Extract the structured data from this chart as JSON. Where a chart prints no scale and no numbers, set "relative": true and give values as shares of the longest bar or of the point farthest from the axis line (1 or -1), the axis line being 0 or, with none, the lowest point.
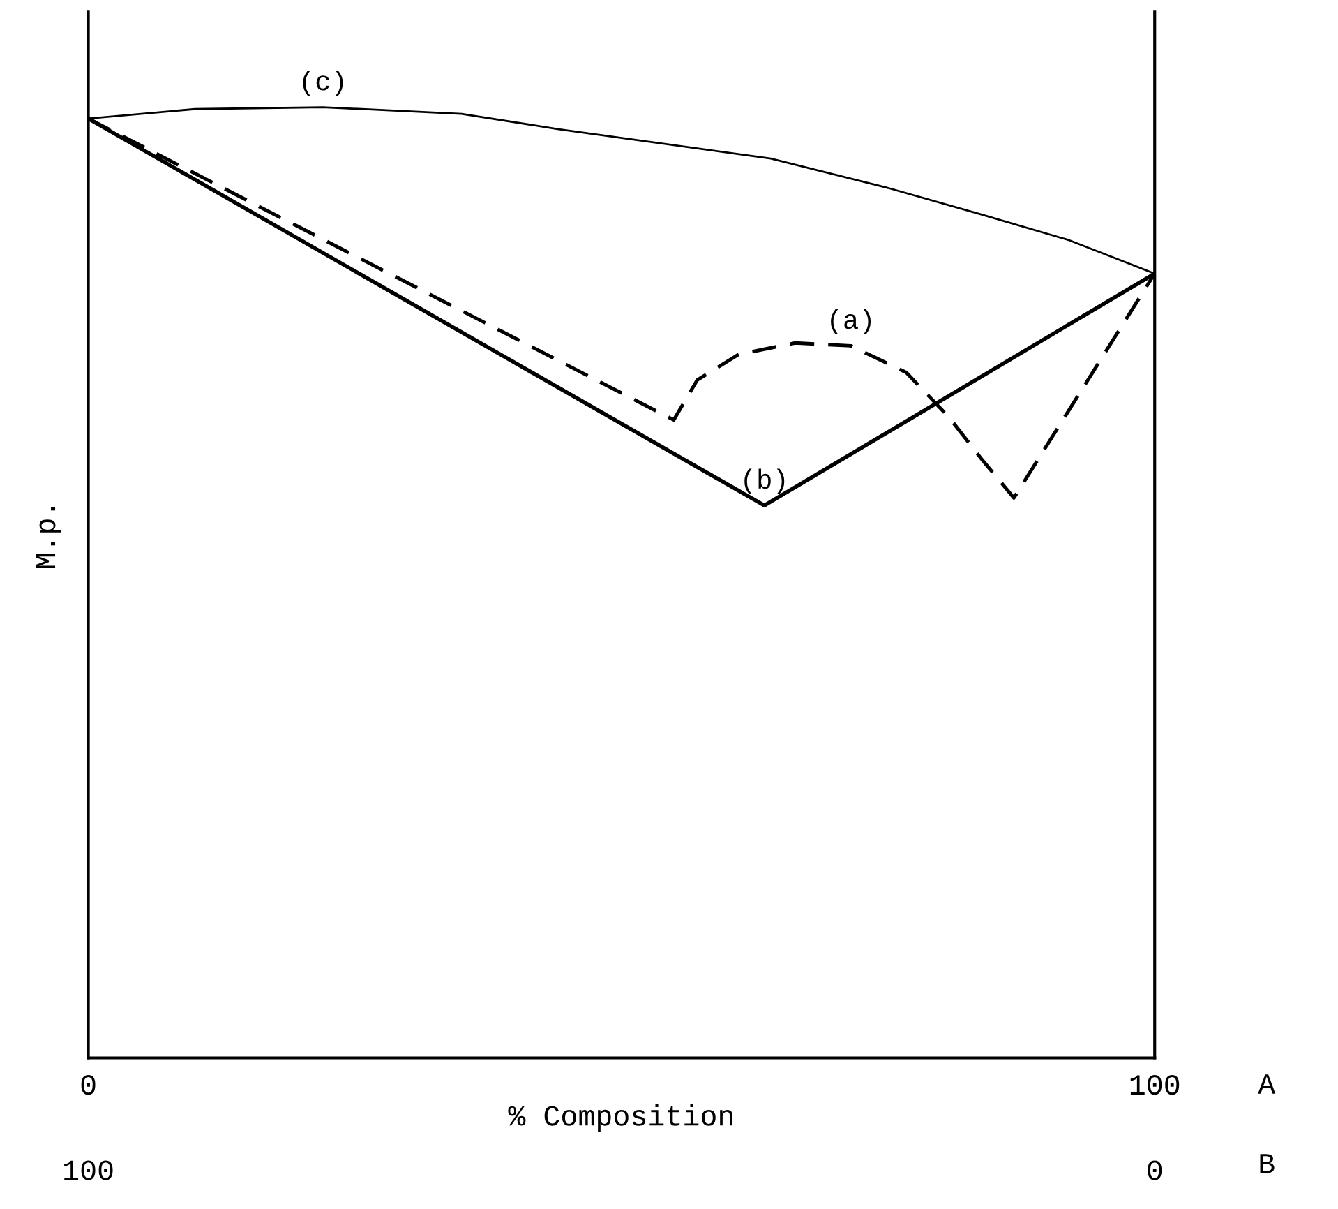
{
  "chart_data": {
    "type": "line",
    "relative": true,
    "xlabel": "% Composition",
    "ylabel": "M.p.",
    "xlim": [
      0,
      100
    ],
    "xticks": [
      0,
      100
    ],
    "x2lim": [
      100,
      0
    ],
    "x2ticks": [
      100,
      0
    ],
    "annotations": [
      "A",
      "B"
    ],
    "marker": "none",
    "series": [
      {
        "name": "(c)",
        "color": "#000000",
        "line_style": "solid",
        "x": [
          0,
          10,
          22,
          35,
          44,
          64,
          75,
          83.5,
          92,
          100
        ],
        "values": [
          0.988,
          0.998,
          1.0,
          0.993,
          0.977,
          0.946,
          0.915,
          0.888,
          0.86,
          0.825
        ]
      },
      {
        "name": "(a)",
        "color": "#000000",
        "line_style": "dashed",
        "x": [
          0,
          54.9,
          57.1,
          61.0,
          66.3,
          71.5,
          76.7,
          80.7,
          83.9,
          86.8,
          100
        ],
        "values": [
          0.988,
          0.671,
          0.713,
          0.74,
          0.752,
          0.749,
          0.721,
          0.674,
          0.628,
          0.589,
          0.825
        ]
      },
      {
        "name": "(b)",
        "color": "#000000",
        "line_style": "solid",
        "x": [
          0,
          63.4,
          100
        ],
        "values": [
          0.988,
          0.581,
          0.825
        ]
      }
    ]
  }
}
